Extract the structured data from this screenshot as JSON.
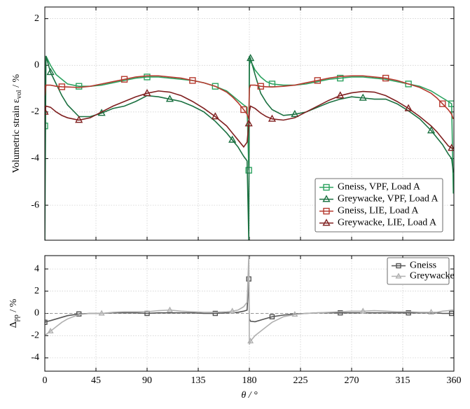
{
  "chart_data": [
    {
      "type": "line",
      "ylabel": {
        "text": "Volumetric strain ε",
        "sub": "vol",
        "after": " / %"
      },
      "x": [
        0,
        1,
        5,
        10,
        15,
        20,
        30,
        40,
        50,
        60,
        70,
        80,
        90,
        100,
        110,
        120,
        130,
        140,
        150,
        160,
        165,
        170,
        175,
        178,
        179.5,
        180,
        181,
        185,
        190,
        195,
        200,
        210,
        220,
        230,
        240,
        250,
        260,
        270,
        280,
        290,
        300,
        310,
        320,
        330,
        340,
        345,
        350,
        355,
        358,
        359.5
      ],
      "xlim": [
        0,
        360
      ],
      "xticks": [
        0,
        45,
        90,
        135,
        180,
        225,
        270,
        315,
        360
      ],
      "ylim": [
        -7.5,
        2.5
      ],
      "yticks": [
        -6,
        -4,
        -2,
        0,
        2
      ],
      "grid": true,
      "legend": "lower right",
      "markevery": 6,
      "series": [
        {
          "name": "Gneiss, VPF, Load A",
          "color": "#2ca25f",
          "marker": "square",
          "values": [
            -2.6,
            0.4,
            0,
            -0.4,
            -0.6,
            -0.8,
            -0.9,
            -0.9,
            -0.85,
            -0.75,
            -0.65,
            -0.55,
            -0.5,
            -0.5,
            -0.55,
            -0.6,
            -0.65,
            -0.75,
            -0.9,
            -1.1,
            -1.3,
            -1.5,
            -1.7,
            -1.8,
            -4.5,
            0,
            0.2,
            -0.2,
            -0.5,
            -0.7,
            -0.8,
            -0.85,
            -0.85,
            -0.8,
            -0.7,
            -0.6,
            -0.55,
            -0.5,
            -0.5,
            -0.55,
            -0.6,
            -0.7,
            -0.8,
            -0.9,
            -1.1,
            -1.25,
            -1.4,
            -1.55,
            -1.65,
            -5.5
          ]
        },
        {
          "name": "Greywacke, VPF, Load A",
          "color": "#1a7040",
          "marker": "triangle",
          "values": [
            -7.5,
            0.4,
            -0.3,
            -0.8,
            -1.3,
            -1.7,
            -2.2,
            -2.2,
            -2.05,
            -1.85,
            -1.75,
            -1.55,
            -1.3,
            -1.35,
            -1.45,
            -1.55,
            -1.75,
            -2.0,
            -2.4,
            -2.9,
            -3.2,
            -3.5,
            -3.9,
            -4.1,
            -7.5,
            0.4,
            0.3,
            -0.4,
            -1.2,
            -1.6,
            -1.9,
            -2.15,
            -2.1,
            -2.0,
            -1.8,
            -1.6,
            -1.45,
            -1.35,
            -1.4,
            -1.45,
            -1.45,
            -1.65,
            -1.95,
            -2.3,
            -2.8,
            -3.1,
            -3.4,
            -3.8,
            -4.0,
            -4.6
          ]
        },
        {
          "name": "Gneiss, LIE, Load A",
          "color": "#b5392e",
          "marker": "square",
          "values": [
            -1.3,
            -0.85,
            -0.85,
            -0.9,
            -0.92,
            -0.93,
            -0.95,
            -0.9,
            -0.8,
            -0.7,
            -0.6,
            -0.5,
            -0.45,
            -0.45,
            -0.5,
            -0.55,
            -0.65,
            -0.75,
            -0.9,
            -1.15,
            -1.35,
            -1.6,
            -1.9,
            -2.1,
            -2.3,
            -1.0,
            -0.85,
            -0.85,
            -0.9,
            -0.92,
            -0.93,
            -0.9,
            -0.85,
            -0.75,
            -0.65,
            -0.55,
            -0.48,
            -0.45,
            -0.45,
            -0.5,
            -0.55,
            -0.65,
            -0.8,
            -0.95,
            -1.2,
            -1.4,
            -1.65,
            -1.9,
            -2.1,
            -2.3
          ]
        },
        {
          "name": "Greywacke, LIE, Load A",
          "color": "#7f1f1f",
          "marker": "triangle",
          "values": [
            -2.0,
            -1.75,
            -1.8,
            -2.0,
            -2.15,
            -2.25,
            -2.35,
            -2.25,
            -2.0,
            -1.75,
            -1.55,
            -1.35,
            -1.2,
            -1.1,
            -1.15,
            -1.3,
            -1.55,
            -1.85,
            -2.2,
            -2.6,
            -2.9,
            -3.2,
            -3.5,
            -3.3,
            -2.5,
            -2.0,
            -1.75,
            -1.85,
            -2.05,
            -2.2,
            -2.3,
            -2.35,
            -2.25,
            -2.0,
            -1.75,
            -1.5,
            -1.3,
            -1.18,
            -1.12,
            -1.15,
            -1.3,
            -1.55,
            -1.85,
            -2.2,
            -2.6,
            -2.85,
            -3.15,
            -3.45,
            -3.55,
            -3.6
          ]
        }
      ]
    },
    {
      "type": "line",
      "ylabel": {
        "text": "Δ",
        "sub": "pp",
        "after": " / %"
      },
      "xlabel": "θ / °",
      "x": [
        0,
        1,
        5,
        10,
        15,
        20,
        30,
        40,
        50,
        60,
        70,
        80,
        90,
        100,
        110,
        120,
        130,
        140,
        150,
        160,
        165,
        170,
        175,
        178,
        179.5,
        180,
        181,
        185,
        190,
        195,
        200,
        210,
        220,
        230,
        240,
        250,
        260,
        270,
        280,
        290,
        300,
        310,
        320,
        330,
        340,
        345,
        350,
        355,
        358,
        359.5
      ],
      "xlim": [
        0,
        360
      ],
      "xticks": [
        0,
        45,
        90,
        135,
        180,
        225,
        270,
        315,
        360
      ],
      "ylim": [
        -5.2,
        5.2
      ],
      "yticks": [
        -4,
        -2,
        0,
        2,
        4
      ],
      "grid": true,
      "legend": "upper right",
      "markevery": 6,
      "hline": 0,
      "series": [
        {
          "name": "Gneiss",
          "color": "#555555",
          "marker": "square",
          "values": [
            -0.8,
            -0.75,
            -0.65,
            -0.5,
            -0.35,
            -0.2,
            -0.05,
            0,
            0,
            0.05,
            0.05,
            0.05,
            0,
            0.05,
            0.05,
            0.05,
            0.05,
            0,
            0,
            0.05,
            0.05,
            0.1,
            0.2,
            0.3,
            3.1,
            -0.5,
            -0.7,
            -0.75,
            -0.6,
            -0.45,
            -0.3,
            -0.15,
            -0.05,
            0,
            0.05,
            0.05,
            0.05,
            0.05,
            0.05,
            0.05,
            0.05,
            0.05,
            0.05,
            0.05,
            0.05,
            0.05,
            0,
            0,
            0,
            0
          ]
        },
        {
          "name": "Greywacke",
          "color": "#b0b0b0",
          "marker": "triangle",
          "values": [
            -2.0,
            -1.9,
            -1.6,
            -1.2,
            -0.8,
            -0.5,
            -0.1,
            0,
            0,
            0.1,
            0.15,
            0.15,
            0.15,
            0.25,
            0.3,
            0.2,
            0.15,
            0.1,
            0.1,
            0.15,
            0.2,
            0.3,
            0.6,
            1.0,
            5.2,
            -2.8,
            -2.5,
            -2.0,
            -1.6,
            -1.2,
            -0.8,
            -0.3,
            -0.1,
            0,
            0.05,
            0.1,
            0.15,
            0.2,
            0.2,
            0.25,
            0.2,
            0.15,
            0.15,
            0.1,
            0.1,
            0.1,
            0.2,
            0.25,
            0.3,
            0.3
          ]
        }
      ]
    }
  ]
}
